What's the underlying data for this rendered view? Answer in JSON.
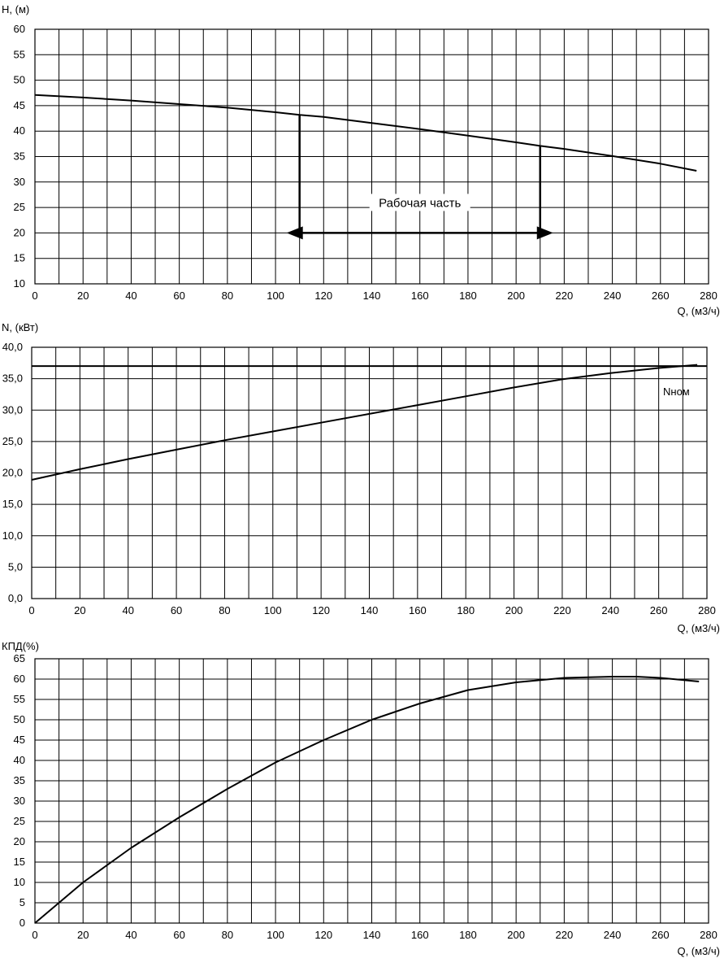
{
  "chart_data": [
    {
      "type": "line",
      "ylabel": "H, (м)",
      "xlabel": "Q, (м3/ч)",
      "xlim": [
        0,
        280
      ],
      "ylim": [
        10,
        60
      ],
      "xticks": [
        "0",
        "20",
        "40",
        "60",
        "80",
        "100",
        "120",
        "140",
        "160",
        "180",
        "200",
        "220",
        "240",
        "260",
        "280"
      ],
      "yticks": [
        "10",
        "15",
        "20",
        "25",
        "30",
        "35",
        "40",
        "45",
        "50",
        "55",
        "60"
      ],
      "grid": true,
      "series": [
        {
          "x": [
            0,
            20,
            40,
            60,
            80,
            100,
            110,
            120,
            140,
            160,
            180,
            200,
            210,
            220,
            240,
            260,
            275
          ],
          "y": [
            47.1,
            46.6,
            46.0,
            45.3,
            44.6,
            43.7,
            43.2,
            42.8,
            41.6,
            40.4,
            39.1,
            37.8,
            37.1,
            36.5,
            35.1,
            33.6,
            32.2
          ]
        }
      ],
      "annotations": [
        {
          "type": "operating_range",
          "text": "Рабочая часть",
          "x_start": 110,
          "x_end": 210,
          "y_level": 20
        }
      ]
    },
    {
      "type": "line",
      "ylabel": "N, (кВт)",
      "xlabel": "Q, (м3/ч)",
      "xlim": [
        0,
        280
      ],
      "ylim": [
        0,
        40
      ],
      "xticks": [
        "0",
        "20",
        "40",
        "60",
        "80",
        "100",
        "120",
        "140",
        "160",
        "180",
        "200",
        "220",
        "240",
        "260",
        "280"
      ],
      "yticks": [
        "0,0",
        "5,0",
        "10,0",
        "15,0",
        "20,0",
        "25,0",
        "30,0",
        "35,0",
        "40,0"
      ],
      "grid": true,
      "series": [
        {
          "x": [
            0,
            20,
            40,
            60,
            80,
            100,
            120,
            140,
            160,
            180,
            200,
            220,
            240,
            260,
            276
          ],
          "y": [
            18.9,
            20.6,
            22.2,
            23.7,
            25.2,
            26.6,
            28.0,
            29.4,
            30.8,
            32.2,
            33.6,
            34.9,
            35.9,
            36.7,
            37.2
          ]
        }
      ],
      "reference_line": {
        "label": "Nном",
        "y": 37
      }
    },
    {
      "type": "line",
      "ylabel": "КПД(%)",
      "xlabel": "Q, (м3/ч)",
      "xlim": [
        0,
        280
      ],
      "ylim": [
        0,
        65
      ],
      "xticks": [
        "0",
        "20",
        "40",
        "60",
        "80",
        "100",
        "120",
        "140",
        "160",
        "180",
        "200",
        "220",
        "240",
        "260",
        "280"
      ],
      "yticks": [
        "0",
        "5",
        "10",
        "15",
        "20",
        "25",
        "30",
        "35",
        "40",
        "45",
        "50",
        "55",
        "60",
        "65"
      ],
      "grid": true,
      "series": [
        {
          "x": [
            0,
            10,
            20,
            40,
            60,
            80,
            100,
            120,
            140,
            160,
            180,
            200,
            220,
            240,
            250,
            260,
            276
          ],
          "y": [
            0,
            5,
            10,
            18.5,
            26,
            33,
            39.5,
            45,
            50,
            54,
            57.3,
            59.2,
            60.3,
            60.6,
            60.6,
            60.3,
            59.4
          ]
        }
      ]
    }
  ]
}
